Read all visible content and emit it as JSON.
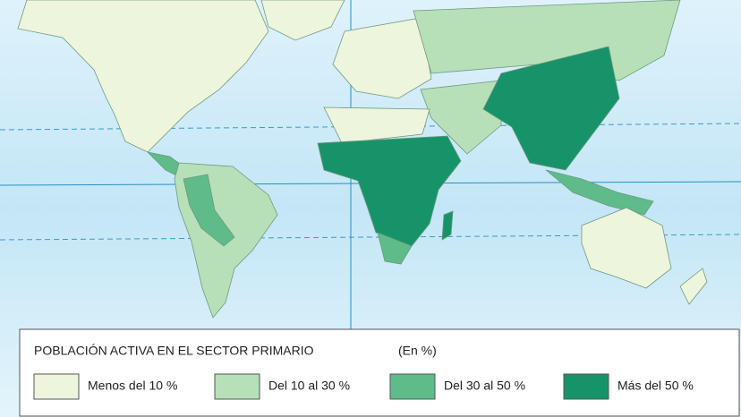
{
  "legend": {
    "title": "POBLACIÓN ACTIVA EN EL SECTOR PRIMARIO",
    "unit": "(En %)",
    "items": [
      "Menos del 10 %",
      "Del 10 al 30 %",
      "Del 30 al 50 %",
      "Más del 50 %"
    ]
  }
}
